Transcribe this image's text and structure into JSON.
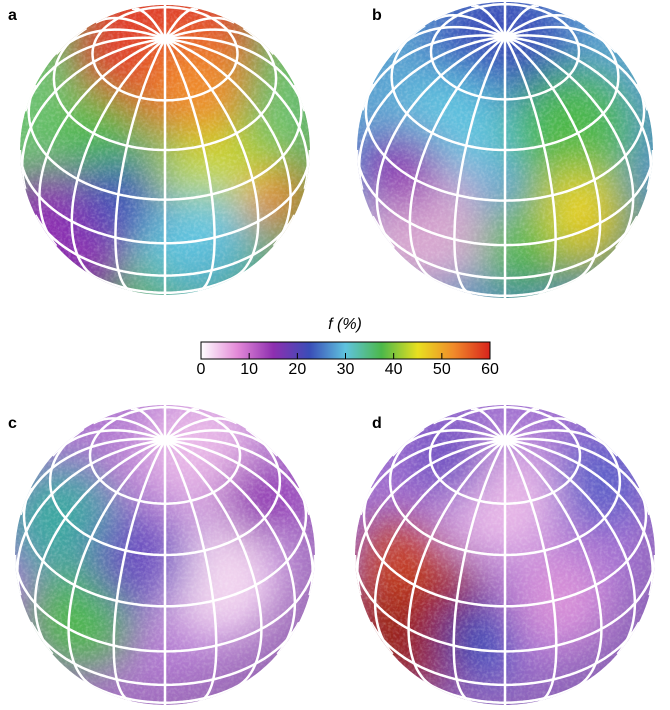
{
  "panels": [
    {
      "label": "a"
    },
    {
      "label": "b"
    },
    {
      "label": "c"
    },
    {
      "label": "d"
    }
  ],
  "colorbar": {
    "label": "f (%)",
    "lim": [
      0,
      60
    ],
    "ticks": [
      0,
      10,
      20,
      30,
      40,
      50,
      60
    ],
    "colors": [
      "#ffffff",
      "#e48ad8",
      "#8e2fb0",
      "#3a4db8",
      "#5fc3df",
      "#4cb84a",
      "#e8e020",
      "#f08a2a",
      "#d8231c"
    ]
  }
}
